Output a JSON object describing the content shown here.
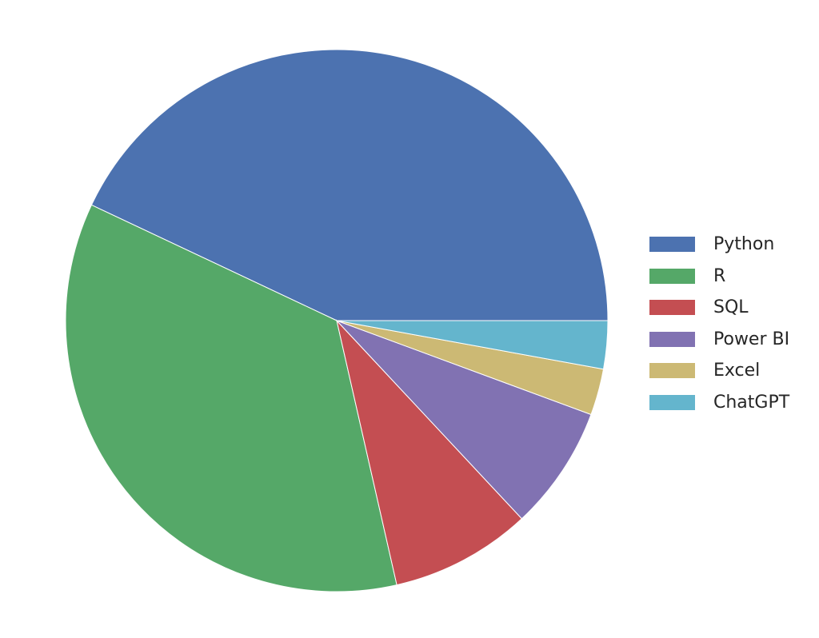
{
  "chart_data": {
    "type": "pie",
    "title": "",
    "categories": [
      "Python",
      "R",
      "SQL",
      "Power BI",
      "Excel",
      "ChatGPT"
    ],
    "values": [
      43.5,
      36.0,
      8.5,
      7.5,
      2.8,
      2.9
    ],
    "colors": [
      "#4C72B0",
      "#55A868",
      "#C44E52",
      "#8172B2",
      "#CCB974",
      "#64B5CD"
    ],
    "start_angle_deg": 0,
    "direction": "counterclockwise",
    "legend": {
      "placement": "right",
      "entries": [
        "Python",
        "R",
        "SQL",
        "Power BI",
        "Excel",
        "ChatGPT"
      ]
    }
  }
}
